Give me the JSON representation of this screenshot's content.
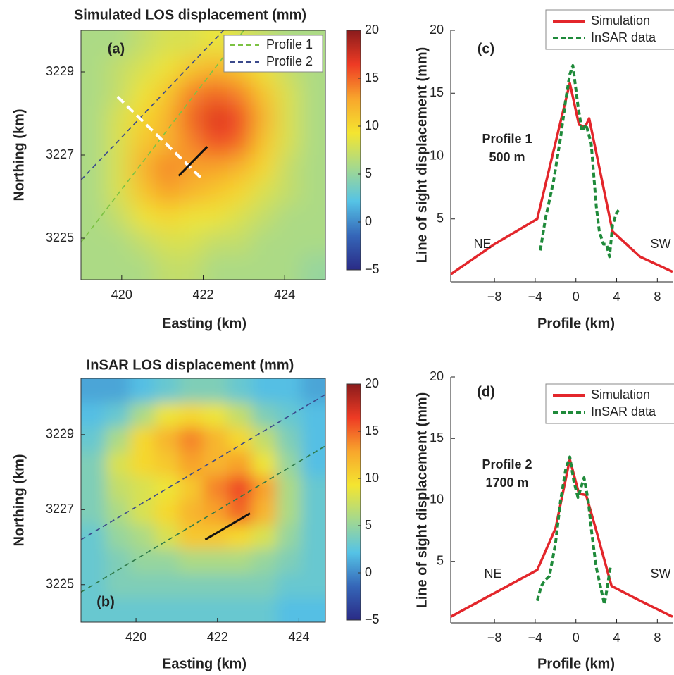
{
  "chart_data": [
    {
      "type": "heatmap",
      "title": "Simulated LOS displacement (mm)",
      "panel_label": "(a)",
      "x_label": "Easting (km)",
      "y_label": "Northing (km)",
      "xlim": [
        419,
        425
      ],
      "ylim": [
        3224,
        3230
      ],
      "xticks": [
        420,
        422,
        424
      ],
      "yticks": [
        3225,
        3227,
        3229
      ],
      "clim": [
        -5,
        20
      ],
      "colormap": [
        "#2a2b86",
        "#3566b8",
        "#55c3e6",
        "#a6d98c",
        "#f4e530",
        "#f8a62c",
        "#ee3b24",
        "#8a1b1c"
      ],
      "colorbar_ticks": [
        20,
        15,
        10,
        5,
        0,
        {
          "value": -5,
          "label": "−5"
        }
      ],
      "z": [
        [
          6,
          6,
          7,
          8,
          8,
          9,
          8,
          7,
          6,
          6
        ],
        [
          6,
          7,
          8,
          9,
          11,
          12,
          11,
          9,
          7,
          6
        ],
        [
          6,
          7,
          9,
          11,
          14,
          15,
          14,
          11,
          8,
          6
        ],
        [
          6,
          8,
          10,
          12,
          15,
          17,
          16,
          12,
          8,
          6
        ],
        [
          6,
          8,
          11,
          12,
          14,
          16,
          15,
          11,
          8,
          6
        ],
        [
          6,
          8,
          12,
          14,
          13,
          13,
          12,
          10,
          7,
          6
        ],
        [
          6,
          8,
          11,
          13,
          12,
          11,
          10,
          8,
          7,
          6
        ],
        [
          6,
          7,
          9,
          10,
          9,
          9,
          8,
          7,
          6,
          6
        ],
        [
          6,
          6,
          7,
          8,
          8,
          7,
          7,
          6,
          6,
          6
        ],
        [
          6,
          6,
          6,
          7,
          7,
          6,
          6,
          6,
          6,
          5
        ]
      ],
      "lines": [
        {
          "name": "Profile 1",
          "color": "#7cc243",
          "dashed": true,
          "x": [
            419,
            423
          ],
          "y": [
            3224.9,
            3230
          ]
        },
        {
          "name": "Profile 2",
          "color": "#3b4a8c",
          "dashed": true,
          "x": [
            419,
            422.5
          ],
          "y": [
            3226.4,
            3230
          ]
        },
        {
          "color": "#ffffff",
          "dashed": true,
          "x": [
            419.9,
            422.0
          ],
          "y": [
            3228.4,
            3226.4
          ]
        },
        {
          "color": "#111111",
          "dashed": false,
          "x": [
            421.4,
            422.1
          ],
          "y": [
            3226.5,
            3227.2
          ]
        }
      ]
    },
    {
      "type": "heatmap",
      "title": "InSAR LOS displacement (mm)",
      "panel_label": "(b)",
      "x_label": "Easting (km)",
      "y_label": "Northing (km)",
      "xlim": [
        418.65,
        424.65
      ],
      "ylim": [
        3224,
        3230.5
      ],
      "xticks": [
        420,
        422,
        424
      ],
      "yticks": [
        3225,
        3227,
        3229
      ],
      "clim": [
        -5,
        20
      ],
      "colormap": [
        "#2a2b86",
        "#3566b8",
        "#55c3e6",
        "#a6d98c",
        "#f4e530",
        "#f8a62c",
        "#ee3b24",
        "#8a1b1c"
      ],
      "colorbar_ticks": [
        20,
        15,
        10,
        5,
        0,
        {
          "value": -5,
          "label": "−5"
        }
      ],
      "z": [
        [
          1,
          1,
          2,
          3,
          4,
          4,
          3,
          2,
          2,
          1
        ],
        [
          2,
          3,
          6,
          9,
          10,
          9,
          7,
          4,
          3,
          2
        ],
        [
          3,
          6,
          10,
          12,
          14,
          12,
          10,
          7,
          4,
          2
        ],
        [
          4,
          8,
          10,
          11,
          13,
          12,
          13,
          9,
          5,
          2
        ],
        [
          4,
          7,
          8,
          9,
          11,
          14,
          16,
          13,
          6,
          3
        ],
        [
          4,
          6,
          8,
          10,
          12,
          13,
          15,
          12,
          6,
          3
        ],
        [
          3,
          5,
          6,
          8,
          11,
          11,
          10,
          8,
          5,
          3
        ],
        [
          3,
          4,
          5,
          5,
          6,
          6,
          6,
          5,
          4,
          3
        ],
        [
          3,
          4,
          4,
          4,
          4,
          4,
          4,
          4,
          3,
          3
        ],
        [
          3,
          3,
          3,
          3,
          3,
          3,
          3,
          3,
          2,
          2
        ]
      ],
      "lines": [
        {
          "color": "#3b4a8c",
          "dashed": true,
          "x": [
            418.65,
            424.65
          ],
          "y": [
            3226.2,
            3230.07
          ]
        },
        {
          "color": "#2f7a4a",
          "dashed": true,
          "x": [
            418.65,
            424.65
          ],
          "y": [
            3224.8,
            3228.7
          ]
        },
        {
          "color": "#111111",
          "dashed": false,
          "x": [
            421.7,
            422.8
          ],
          "y": [
            3226.2,
            3226.9
          ]
        }
      ]
    },
    {
      "type": "line",
      "panel_label": "(c)",
      "x_label": "Profile (km)",
      "y_label": "Line of sight displacement (mm)",
      "xlim": [
        -12.3,
        9.5
      ],
      "ylim": [
        0,
        20
      ],
      "xticks": [
        {
          "value": -8,
          "label": "−8"
        },
        {
          "value": -4,
          "label": "−4"
        },
        0,
        4,
        8
      ],
      "yticks": [
        5,
        10,
        15,
        20
      ],
      "legend": "upper right",
      "annotations": [
        "Profile 1",
        "500 m",
        "NE",
        "SW"
      ],
      "series": [
        {
          "name": "Simulation",
          "color": "#e3262b",
          "dashed": false,
          "x": [
            -12.3,
            -8,
            -3.8,
            -0.6,
            0.3,
            0.9,
            1.3,
            3.6,
            6.3,
            9.5
          ],
          "values": [
            0.6,
            3.0,
            5.0,
            15.8,
            12.5,
            12.3,
            13.0,
            4.0,
            2.0,
            0.8
          ]
        },
        {
          "name": "InSAR data",
          "color": "#1f8a3a",
          "dashed": true,
          "x": [
            -3.5,
            -3.0,
            -2.2,
            -1.5,
            -1.0,
            -0.6,
            -0.3,
            0.2,
            0.6,
            1.0,
            1.5,
            2.0,
            2.3,
            2.7,
            3.0,
            3.3,
            3.6,
            4.0,
            4.3
          ],
          "values": [
            2.5,
            5.0,
            8.0,
            11.5,
            14.5,
            16.5,
            17.2,
            14.0,
            12.0,
            12.5,
            11.0,
            6.0,
            4.0,
            3.0,
            3.0,
            2.0,
            4.5,
            5.5,
            5.8
          ]
        }
      ]
    },
    {
      "type": "line",
      "panel_label": "(d)",
      "x_label": "Profile (km)",
      "y_label": "Line of sight displacement (mm)",
      "xlim": [
        -12.3,
        9.5
      ],
      "ylim": [
        0,
        20
      ],
      "xticks": [
        {
          "value": -8,
          "label": "−8"
        },
        {
          "value": -4,
          "label": "−4"
        },
        0,
        4,
        8
      ],
      "yticks": [
        5,
        10,
        15,
        20
      ],
      "legend": "upper right",
      "annotations": [
        "Profile 2",
        "1700 m",
        "NE",
        "SW"
      ],
      "series": [
        {
          "name": "Simulation",
          "color": "#e3262b",
          "dashed": false,
          "x": [
            -12.3,
            -3.8,
            -2.0,
            -0.6,
            0.3,
            1.0,
            2.0,
            3.5,
            6.3,
            9.5
          ],
          "values": [
            0.5,
            4.3,
            7.7,
            13.3,
            10.5,
            10.4,
            7.5,
            3.0,
            1.8,
            0.5
          ]
        },
        {
          "name": "InSAR data",
          "color": "#1f8a3a",
          "dashed": true,
          "x": [
            -3.8,
            -3.4,
            -3.0,
            -2.6,
            -2.0,
            -1.5,
            -1.0,
            -0.6,
            -0.2,
            0.2,
            0.5,
            0.8,
            1.2,
            1.6,
            2.0,
            2.4,
            2.8,
            3.1,
            3.4
          ],
          "values": [
            1.8,
            3.0,
            3.5,
            3.8,
            6.5,
            10.0,
            12.5,
            13.5,
            11.5,
            10.2,
            11.0,
            11.8,
            10.0,
            7.0,
            4.5,
            3.0,
            1.5,
            3.0,
            4.6
          ]
        }
      ]
    }
  ]
}
